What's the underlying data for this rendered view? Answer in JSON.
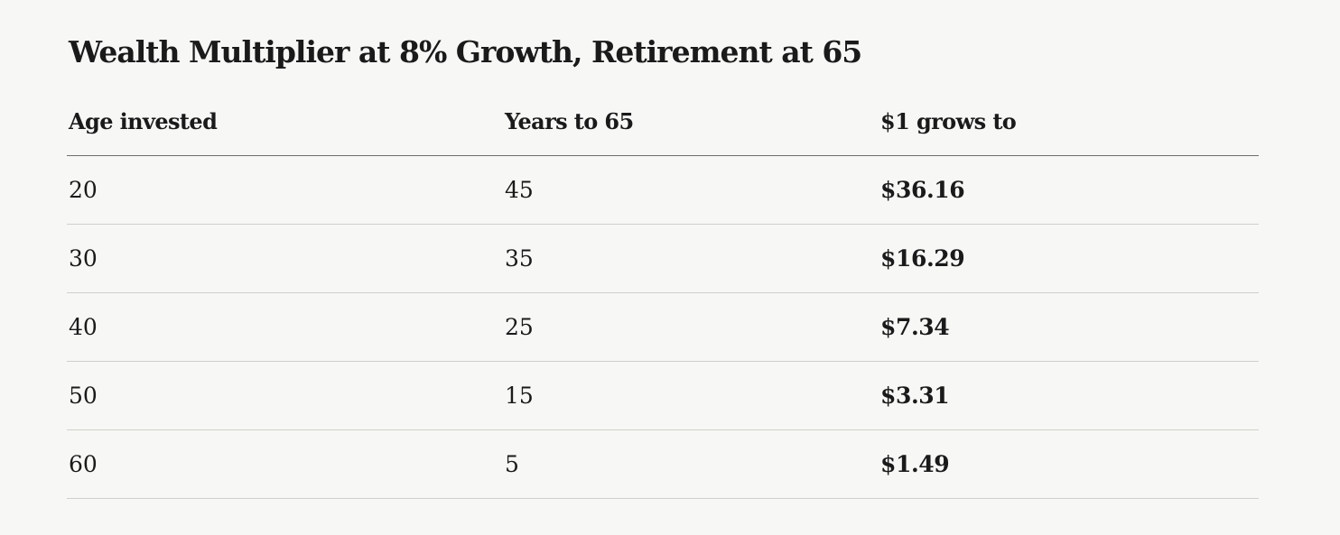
{
  "title": "Wealth Multiplier at 8% Growth, Retirement at 65",
  "table": {
    "headers": [
      "Age invested",
      "Years to 65",
      "$1 grows to"
    ],
    "rows": [
      [
        "20",
        "45",
        "$36.16"
      ],
      [
        "30",
        "35",
        "$16.29"
      ],
      [
        "40",
        "25",
        "$7.34"
      ],
      [
        "50",
        "15",
        "$3.31"
      ],
      [
        "60",
        "5",
        "$1.49"
      ]
    ]
  }
}
